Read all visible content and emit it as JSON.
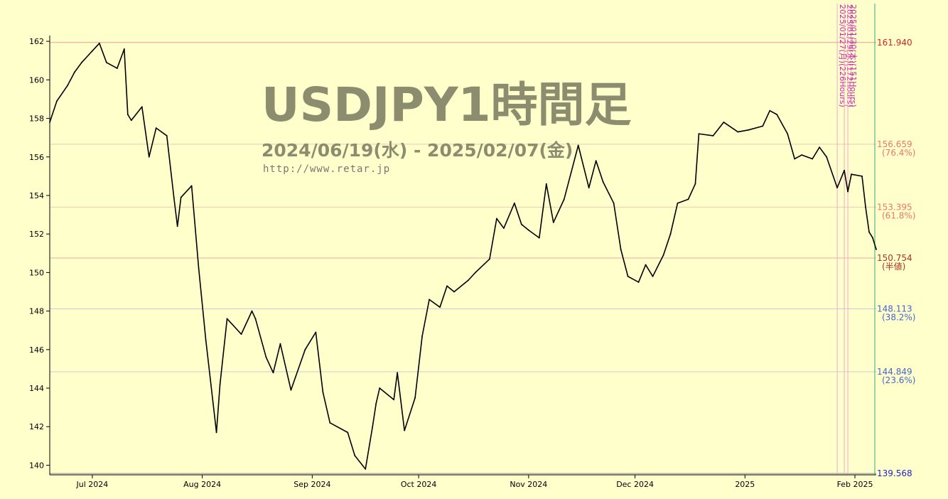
{
  "chart_data": {
    "type": "line",
    "title": "USDJPY1時間足",
    "subtitle": "2024/06/19(水) - 2025/02/07(金)",
    "watermark_url": "http://www.retar.jp",
    "xlabel": "",
    "ylabel": "",
    "x_range": [
      "2024-06-19",
      "2025-02-07"
    ],
    "ylim": [
      139.5,
      162.3
    ],
    "y_ticks": [
      140,
      142,
      144,
      146,
      148,
      150,
      152,
      154,
      156,
      158,
      160,
      162
    ],
    "x_ticks": [
      {
        "date": "2024-07-01",
        "label": "Jul 2024"
      },
      {
        "date": "2024-08-01",
        "label": "Aug 2024"
      },
      {
        "date": "2024-09-01",
        "label": "Sep 2024"
      },
      {
        "date": "2024-10-01",
        "label": "Oct 2024"
      },
      {
        "date": "2024-11-01",
        "label": "Nov 2024"
      },
      {
        "date": "2024-12-01",
        "label": "Dec 2024"
      },
      {
        "date": "2025-01-01",
        "label": "2025"
      },
      {
        "date": "2025-02-01",
        "label": "Feb 2025"
      }
    ],
    "grid": false,
    "colors": {
      "background": "#ffffcc",
      "line": "#000000",
      "high": "#dd2222",
      "upper_fib": "#ee7766",
      "half": "#aa3322",
      "lower_fib": "#4466cc",
      "low": "#2222cc",
      "marker_text": "#cc22aa",
      "title": "#8c8c6e",
      "url": "#777777"
    },
    "levels": [
      {
        "value": 161.94,
        "label": "161.940",
        "pct": ""
      },
      {
        "value": 156.659,
        "label": "156.659",
        "pct": "(76.4%)"
      },
      {
        "value": 153.395,
        "label": "153.395",
        "pct": "(61.8%)"
      },
      {
        "value": 150.754,
        "label": "150.754",
        "pct": "(半値)"
      },
      {
        "value": 148.113,
        "label": "148.113",
        "pct": "(38.2%)"
      },
      {
        "value": 144.849,
        "label": "144.849",
        "pct": "(23.6%)"
      },
      {
        "value": 139.568,
        "label": "139.568",
        "pct": ""
      }
    ],
    "time_markers": [
      {
        "date": "2025-01-27",
        "label": "2025/01/27(月)(226Hours)"
      },
      {
        "date": "2025-01-29",
        "label": "2025/01/29(水)(172Hours)"
      },
      {
        "date": "2025-01-30",
        "label": "2025/01/30(木)(151Hours)"
      }
    ],
    "series": [
      {
        "values": [
          [
            "2024-06-19",
            157.8
          ],
          [
            "2024-06-21",
            158.9
          ],
          [
            "2024-06-24",
            159.7
          ],
          [
            "2024-06-26",
            160.4
          ],
          [
            "2024-06-28",
            160.9
          ],
          [
            "2024-07-01",
            161.5
          ],
          [
            "2024-07-03",
            161.9
          ],
          [
            "2024-07-05",
            160.9
          ],
          [
            "2024-07-08",
            160.6
          ],
          [
            "2024-07-10",
            161.6
          ],
          [
            "2024-07-11",
            158.2
          ],
          [
            "2024-07-12",
            157.9
          ],
          [
            "2024-07-15",
            158.6
          ],
          [
            "2024-07-17",
            156.0
          ],
          [
            "2024-07-19",
            157.5
          ],
          [
            "2024-07-22",
            157.1
          ],
          [
            "2024-07-24",
            153.9
          ],
          [
            "2024-07-25",
            152.4
          ],
          [
            "2024-07-26",
            153.9
          ],
          [
            "2024-07-29",
            154.5
          ],
          [
            "2024-07-31",
            150.2
          ],
          [
            "2024-08-02",
            146.5
          ],
          [
            "2024-08-05",
            141.7
          ],
          [
            "2024-08-06",
            144.2
          ],
          [
            "2024-08-08",
            147.6
          ],
          [
            "2024-08-12",
            146.8
          ],
          [
            "2024-08-15",
            148.0
          ],
          [
            "2024-08-16",
            147.6
          ],
          [
            "2024-08-19",
            145.6
          ],
          [
            "2024-08-21",
            144.8
          ],
          [
            "2024-08-23",
            146.3
          ],
          [
            "2024-08-26",
            143.9
          ],
          [
            "2024-08-30",
            146.0
          ],
          [
            "2024-09-02",
            146.9
          ],
          [
            "2024-09-04",
            143.8
          ],
          [
            "2024-09-06",
            142.2
          ],
          [
            "2024-09-11",
            141.7
          ],
          [
            "2024-09-13",
            140.5
          ],
          [
            "2024-09-16",
            139.8
          ],
          [
            "2024-09-18",
            142.0
          ],
          [
            "2024-09-19",
            143.2
          ],
          [
            "2024-09-20",
            144.0
          ],
          [
            "2024-09-24",
            143.4
          ],
          [
            "2024-09-25",
            144.8
          ],
          [
            "2024-09-27",
            141.8
          ],
          [
            "2024-09-30",
            143.5
          ],
          [
            "2024-10-02",
            146.7
          ],
          [
            "2024-10-04",
            148.6
          ],
          [
            "2024-10-07",
            148.2
          ],
          [
            "2024-10-09",
            149.3
          ],
          [
            "2024-10-11",
            149.0
          ],
          [
            "2024-10-15",
            149.6
          ],
          [
            "2024-10-17",
            150.0
          ],
          [
            "2024-10-21",
            150.7
          ],
          [
            "2024-10-23",
            152.8
          ],
          [
            "2024-10-25",
            152.3
          ],
          [
            "2024-10-28",
            153.6
          ],
          [
            "2024-10-30",
            152.5
          ],
          [
            "2024-11-01",
            152.2
          ],
          [
            "2024-11-04",
            151.8
          ],
          [
            "2024-11-06",
            154.6
          ],
          [
            "2024-11-08",
            152.6
          ],
          [
            "2024-11-11",
            153.8
          ],
          [
            "2024-11-13",
            155.2
          ],
          [
            "2024-11-15",
            156.6
          ],
          [
            "2024-11-18",
            154.4
          ],
          [
            "2024-11-20",
            155.8
          ],
          [
            "2024-11-22",
            154.7
          ],
          [
            "2024-11-25",
            153.6
          ],
          [
            "2024-11-27",
            151.2
          ],
          [
            "2024-11-29",
            149.8
          ],
          [
            "2024-12-02",
            149.5
          ],
          [
            "2024-12-04",
            150.4
          ],
          [
            "2024-12-06",
            149.8
          ],
          [
            "2024-12-09",
            150.9
          ],
          [
            "2024-12-11",
            152.0
          ],
          [
            "2024-12-13",
            153.6
          ],
          [
            "2024-12-16",
            153.8
          ],
          [
            "2024-12-18",
            154.6
          ],
          [
            "2024-12-19",
            157.2
          ],
          [
            "2024-12-23",
            157.1
          ],
          [
            "2024-12-26",
            157.8
          ],
          [
            "2024-12-30",
            157.3
          ],
          [
            "2025-01-02",
            157.4
          ],
          [
            "2025-01-06",
            157.6
          ],
          [
            "2025-01-08",
            158.4
          ],
          [
            "2025-01-10",
            158.2
          ],
          [
            "2025-01-13",
            157.2
          ],
          [
            "2025-01-15",
            155.9
          ],
          [
            "2025-01-17",
            156.1
          ],
          [
            "2025-01-20",
            155.9
          ],
          [
            "2025-01-22",
            156.5
          ],
          [
            "2025-01-24",
            156.0
          ],
          [
            "2025-01-27",
            154.4
          ],
          [
            "2025-01-29",
            155.3
          ],
          [
            "2025-01-30",
            154.2
          ],
          [
            "2025-01-31",
            155.1
          ],
          [
            "2025-02-03",
            155.0
          ],
          [
            "2025-02-04",
            153.4
          ],
          [
            "2025-02-05",
            152.1
          ],
          [
            "2025-02-06",
            151.8
          ],
          [
            "2025-02-07",
            151.2
          ]
        ]
      }
    ]
  }
}
